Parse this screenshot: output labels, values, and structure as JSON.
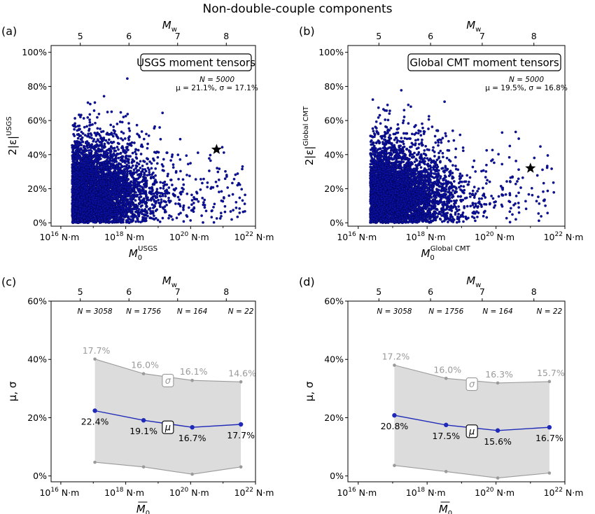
{
  "figure_title": "Non-double-couple components",
  "chart_data": [
    {
      "type": "scatter",
      "panel_label": "(a)",
      "box_label": "USGS moment tensors",
      "stats_n": "N = 5000",
      "stats_mu_sigma": "μ = 21.1%,  σ = 17.1%",
      "top_axis_label": "M",
      "top_axis_sub": "w",
      "top_ticks": [
        "5",
        "6",
        "7",
        "8"
      ],
      "xlabel": "M",
      "xlabel_sub": "0",
      "xlabel_sup": "USGS",
      "ylabel": "2|ε|",
      "ylabel_sup": "USGS",
      "x_scale": "log",
      "x_unit": "N·m",
      "xlim_log10": [
        15.7,
        22
      ],
      "x_ticks": [
        "10",
        "10",
        "10",
        "10"
      ],
      "x_tick_exp": [
        "16",
        "18",
        "20",
        "22"
      ],
      "y_ticks": [
        "0%",
        "20%",
        "40%",
        "60%",
        "80%",
        "100%"
      ],
      "ylim_percent": [
        -2,
        104
      ],
      "n_points": 5000,
      "mean_percent": 21.1,
      "std_percent": 17.1,
      "point_color": "#0a10a6",
      "star": {
        "log10_m0": 20.8,
        "value_percent": 43
      }
    },
    {
      "type": "scatter",
      "panel_label": "(b)",
      "box_label": "Global CMT moment tensors",
      "stats_n": "N = 5000",
      "stats_mu_sigma": "μ = 19.5%,  σ = 16.8%",
      "top_axis_label": "M",
      "top_axis_sub": "w",
      "top_ticks": [
        "5",
        "6",
        "7",
        "8"
      ],
      "xlabel": "M",
      "xlabel_sub": "0",
      "xlabel_sup": "Global CMT",
      "ylabel": "2|ε|",
      "ylabel_sup": "Global CMT",
      "x_scale": "log",
      "x_unit": "N·m",
      "xlim_log10": [
        15.7,
        22
      ],
      "x_ticks": [
        "10",
        "10",
        "10",
        "10"
      ],
      "x_tick_exp": [
        "16",
        "18",
        "20",
        "22"
      ],
      "y_ticks": [
        "0%",
        "20%",
        "40%",
        "60%",
        "80%",
        "100%"
      ],
      "ylim_percent": [
        -2,
        104
      ],
      "n_points": 5000,
      "mean_percent": 19.5,
      "std_percent": 16.8,
      "point_color": "#0a10a6",
      "star": {
        "log10_m0": 21.0,
        "value_percent": 32
      }
    },
    {
      "type": "line",
      "panel_label": "(c)",
      "top_axis_label": "M",
      "top_axis_sub": "w",
      "top_ticks": [
        "5",
        "6",
        "7",
        "8"
      ],
      "xlabel": "M",
      "xlabel_sub": "0",
      "ylabel": "μ, σ",
      "x_scale": "log",
      "x_unit": "N·m",
      "xlim_log10": [
        15.7,
        22
      ],
      "x_ticks": [
        "10",
        "10",
        "10",
        "10"
      ],
      "x_tick_exp": [
        "16",
        "18",
        "20",
        "22"
      ],
      "y_ticks": [
        "0%",
        "20%",
        "40%",
        "60%"
      ],
      "ylim_percent": [
        -2,
        60
      ],
      "bins_log10_m0": [
        17.05,
        18.55,
        20.05,
        21.55
      ],
      "counts": [
        "N = 3058",
        "N = 1756",
        "N = 164",
        "N = 22"
      ],
      "mu": [
        22.4,
        19.1,
        16.7,
        17.7
      ],
      "mu_labels": [
        "22.4%",
        "19.1%",
        "16.7%",
        "17.7%"
      ],
      "sigma": [
        17.7,
        16.0,
        16.1,
        14.6
      ],
      "sigma_labels": [
        "17.7%",
        "16.0%",
        "16.1%",
        "14.6%"
      ],
      "mu_tag": "μ",
      "sigma_tag": "σ",
      "mu_color": "#1f2ab8",
      "band_color": "#dcdcdc",
      "sigma_color": "#9a9a9a"
    },
    {
      "type": "line",
      "panel_label": "(d)",
      "top_axis_label": "M",
      "top_axis_sub": "w",
      "top_ticks": [
        "5",
        "6",
        "7",
        "8"
      ],
      "xlabel": "M",
      "xlabel_sub": "0",
      "ylabel": "μ, σ",
      "x_scale": "log",
      "x_unit": "N·m",
      "xlim_log10": [
        15.7,
        22
      ],
      "x_ticks": [
        "10",
        "10",
        "10",
        "10"
      ],
      "x_tick_exp": [
        "16",
        "18",
        "20",
        "22"
      ],
      "y_ticks": [
        "0%",
        "20%",
        "40%",
        "60%"
      ],
      "ylim_percent": [
        -2,
        60
      ],
      "bins_log10_m0": [
        17.05,
        18.55,
        20.05,
        21.55
      ],
      "counts": [
        "N = 3058",
        "N = 1756",
        "N = 164",
        "N = 22"
      ],
      "mu": [
        20.8,
        17.5,
        15.6,
        16.7
      ],
      "mu_labels": [
        "20.8%",
        "17.5%",
        "15.6%",
        "16.7%"
      ],
      "sigma": [
        17.2,
        16.0,
        16.3,
        15.7
      ],
      "sigma_labels": [
        "17.2%",
        "16.0%",
        "16.3%",
        "15.7%"
      ],
      "mu_tag": "μ",
      "sigma_tag": "σ",
      "mu_color": "#1f2ab8",
      "band_color": "#dcdcdc",
      "sigma_color": "#9a9a9a"
    }
  ]
}
